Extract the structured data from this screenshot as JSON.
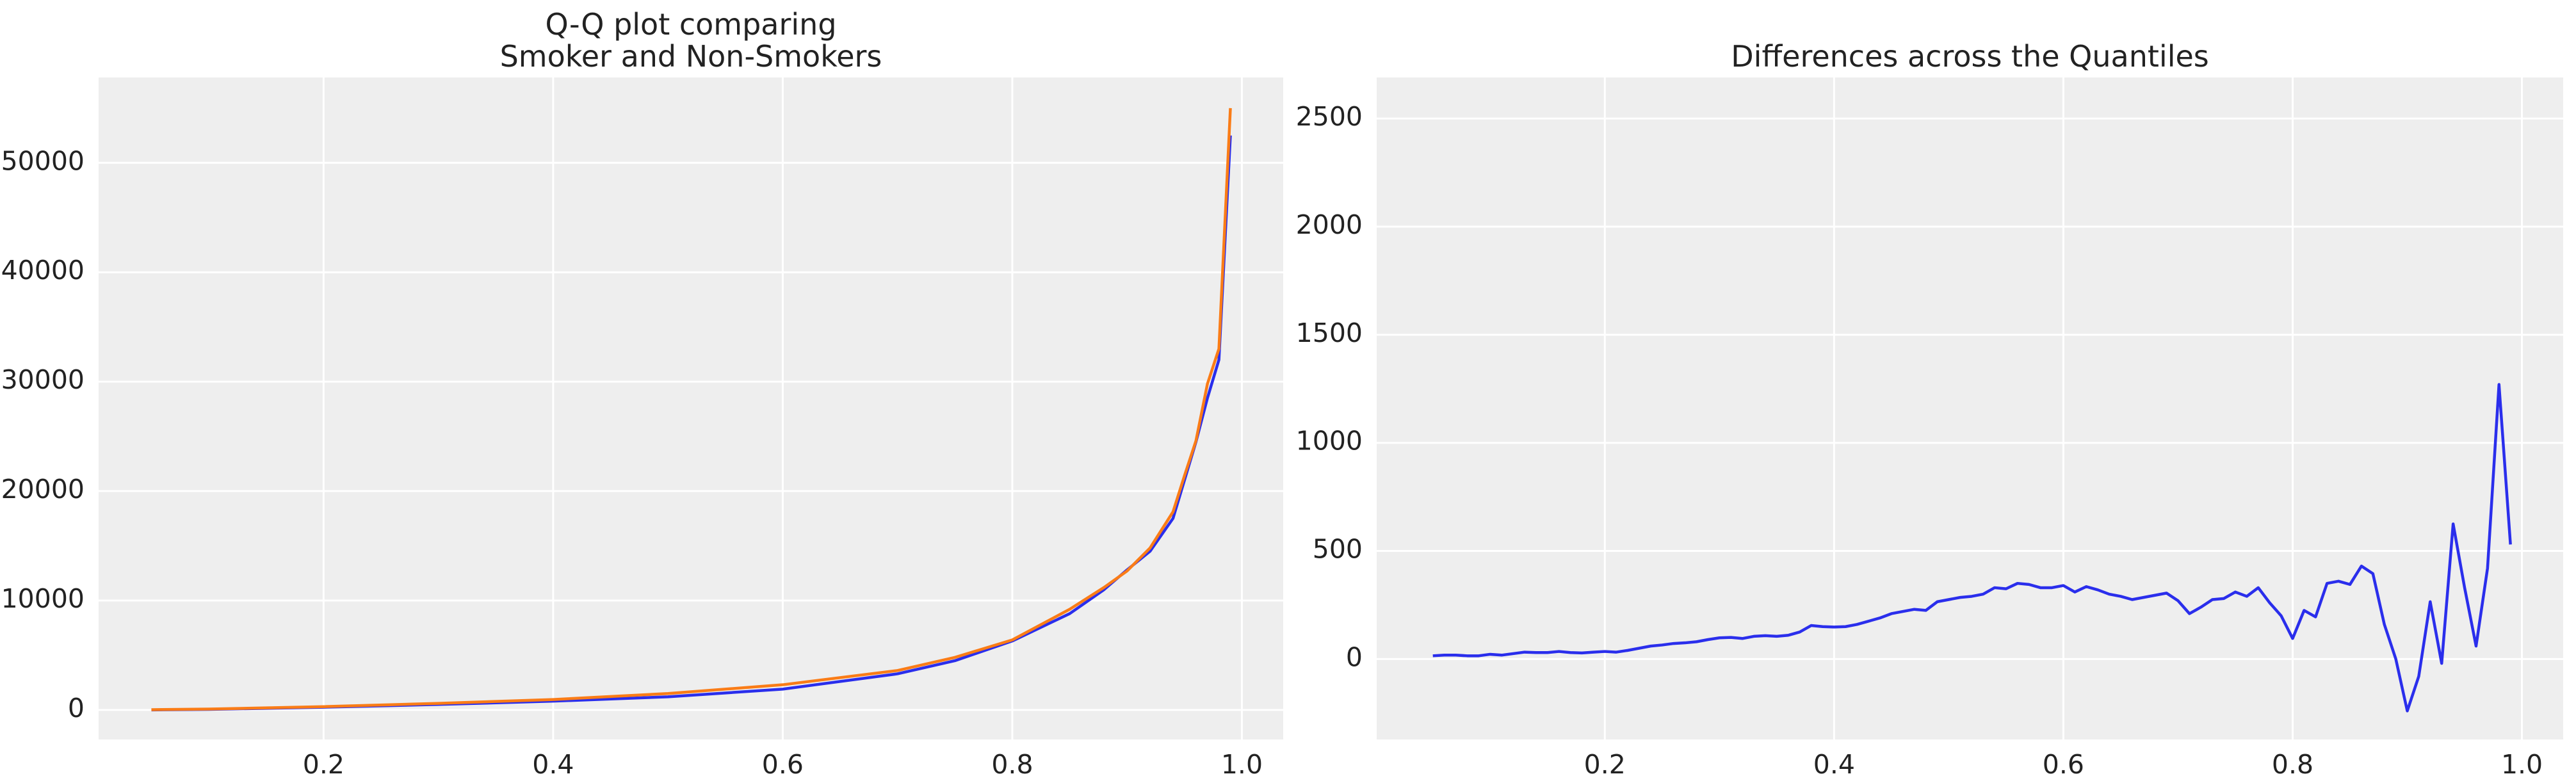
{
  "chart_data": [
    {
      "type": "line",
      "title": "Q-Q plot comparing\nSmoker and Non-Smokers",
      "x": [
        0.05,
        0.1,
        0.2,
        0.3,
        0.4,
        0.5,
        0.6,
        0.7,
        0.75,
        0.8,
        0.85,
        0.88,
        0.9,
        0.92,
        0.94,
        0.95,
        0.96,
        0.97,
        0.98,
        0.99
      ],
      "series": [
        {
          "name": "Smoker",
          "color": "#2a2eec",
          "values": [
            0,
            50,
            250,
            500,
            800,
            1200,
            1900,
            3300,
            4500,
            6300,
            8800,
            11000,
            12800,
            14500,
            17500,
            21000,
            24500,
            28500,
            32000,
            52500
          ]
        },
        {
          "name": "Non-Smokers",
          "color": "#fa7c17",
          "values": [
            20,
            80,
            300,
            600,
            950,
            1500,
            2300,
            3600,
            4800,
            6400,
            9200,
            11200,
            12700,
            14800,
            18100,
            21400,
            24600,
            29800,
            33000,
            55000
          ]
        }
      ],
      "xlim": [
        0.004,
        1.036
      ],
      "ylim": [
        -2700,
        57800
      ],
      "xticks": [
        0.2,
        0.4,
        0.6,
        0.8,
        {
          "value": 1.0,
          "label": "1.0"
        }
      ],
      "yticks": [
        0,
        10000,
        20000,
        30000,
        40000,
        50000
      ],
      "grid": true
    },
    {
      "type": "line",
      "title": "Differences across the Quantiles",
      "x": [
        0.05,
        0.06,
        0.07,
        0.08,
        0.09,
        0.1,
        0.11,
        0.12,
        0.13,
        0.14,
        0.15,
        0.16,
        0.17,
        0.18,
        0.19,
        0.2,
        0.21,
        0.22,
        0.23,
        0.24,
        0.25,
        0.26,
        0.27,
        0.28,
        0.29,
        0.3,
        0.31,
        0.32,
        0.33,
        0.34,
        0.35,
        0.36,
        0.37,
        0.38,
        0.39,
        0.4,
        0.41,
        0.42,
        0.43,
        0.44,
        0.45,
        0.46,
        0.47,
        0.48,
        0.49,
        0.5,
        0.51,
        0.52,
        0.53,
        0.54,
        0.55,
        0.56,
        0.57,
        0.58,
        0.59,
        0.6,
        0.61,
        0.62,
        0.63,
        0.64,
        0.65,
        0.66,
        0.67,
        0.68,
        0.69,
        0.7,
        0.71,
        0.72,
        0.73,
        0.74,
        0.75,
        0.76,
        0.77,
        0.78,
        0.79,
        0.8,
        0.81,
        0.82,
        0.83,
        0.84,
        0.85,
        0.86,
        0.87,
        0.88,
        0.89,
        0.9,
        0.91,
        0.92,
        0.93,
        0.94,
        0.95,
        0.96,
        0.97,
        0.98,
        0.99
      ],
      "series": [
        {
          "name": "Difference",
          "color": "#2a2eec",
          "values": [
            15,
            18,
            18,
            15,
            15,
            22,
            18,
            25,
            32,
            30,
            30,
            35,
            30,
            28,
            32,
            35,
            32,
            40,
            50,
            60,
            65,
            72,
            75,
            80,
            90,
            98,
            100,
            95,
            105,
            108,
            105,
            110,
            125,
            155,
            150,
            148,
            150,
            160,
            175,
            190,
            210,
            220,
            230,
            225,
            265,
            275,
            285,
            290,
            300,
            330,
            325,
            350,
            345,
            330,
            330,
            340,
            310,
            335,
            320,
            300,
            290,
            275,
            285,
            295,
            305,
            270,
            210,
            240,
            275,
            280,
            310,
            290,
            330,
            260,
            200,
            95,
            225,
            195,
            350,
            360,
            345,
            430,
            395,
            160,
            0,
            -240,
            -80,
            265,
            -20,
            625,
            330,
            60,
            420,
            1270,
            530
          ]
        }
      ],
      "xlim": [
        0.001,
        1.036
      ],
      "ylim": [
        -372,
        2690
      ],
      "xticks": [
        0.2,
        0.4,
        0.6,
        0.8,
        {
          "value": 1.0,
          "label": "1.0"
        }
      ],
      "yticks": [
        0,
        500,
        1000,
        1500,
        2000,
        2500
      ],
      "grid": true
    }
  ]
}
